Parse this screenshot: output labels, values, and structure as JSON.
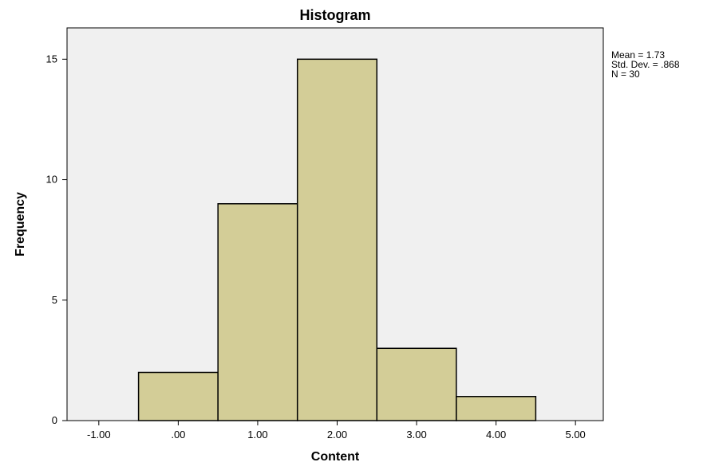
{
  "chart_data": {
    "type": "bar",
    "title": "Histogram",
    "xlabel": "Content",
    "ylabel": "Frequency",
    "bins": [
      {
        "start": -0.5,
        "end": 0.5,
        "count": 2
      },
      {
        "start": 0.5,
        "end": 1.5,
        "count": 9
      },
      {
        "start": 1.5,
        "end": 2.5,
        "count": 15
      },
      {
        "start": 2.5,
        "end": 3.5,
        "count": 3
      },
      {
        "start": 3.5,
        "end": 4.5,
        "count": 1
      }
    ],
    "xlim": [
      -1.4,
      5.35
    ],
    "ylim": [
      0,
      16.3
    ],
    "x_ticks": [
      -1,
      0,
      1,
      2,
      3,
      4,
      5
    ],
    "x_tick_labels": [
      "-1.00",
      ".00",
      "1.00",
      "2.00",
      "3.00",
      "4.00",
      "5.00"
    ],
    "y_ticks": [
      0,
      5,
      10,
      15
    ],
    "y_tick_labels": [
      "0",
      "5",
      "10",
      "15"
    ],
    "stats": [
      "Mean = 1.73",
      "Std. Dev. = .868",
      "N = 30"
    ],
    "colors": {
      "bar_fill": "#d3cd97",
      "bar_stroke": "#000000",
      "plot_background": "#f0f0f0"
    },
    "grid": false
  }
}
